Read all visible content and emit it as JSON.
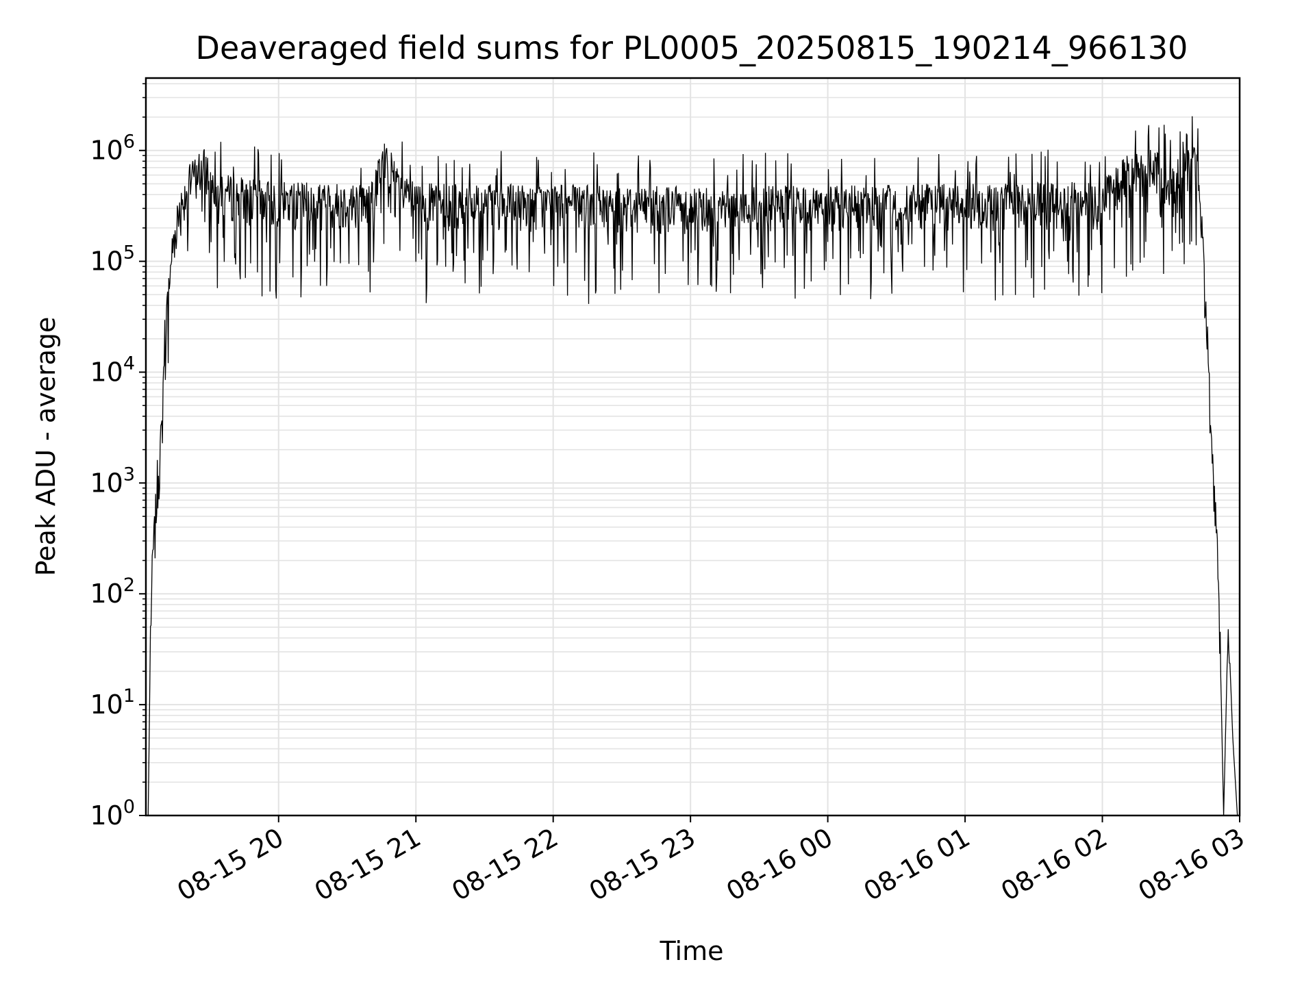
{
  "chart_data": {
    "type": "line",
    "title": "Deaveraged field sums for PL0005_20250815_190214_966130",
    "xlabel": "Time",
    "ylabel": "Peak ADU - average",
    "yscale": "log",
    "ylim": [
      1,
      4500000.0
    ],
    "xlim": [
      "2025-08-15 19:02",
      "2025-08-16 03:00"
    ],
    "grid": true,
    "line_color": "#000000",
    "x_ticks": [
      "08-15 20",
      "08-15 21",
      "08-15 22",
      "08-15 23",
      "08-16 00",
      "08-16 01",
      "08-16 02",
      "08-16 03"
    ],
    "y_ticks": [
      {
        "base": "10",
        "exp": "0"
      },
      {
        "base": "10",
        "exp": "1"
      },
      {
        "base": "10",
        "exp": "2"
      },
      {
        "base": "10",
        "exp": "3"
      },
      {
        "base": "10",
        "exp": "4"
      },
      {
        "base": "10",
        "exp": "5"
      },
      {
        "base": "10",
        "exp": "6"
      }
    ],
    "series": [
      {
        "x": [
          "2025-08-15 19:03",
          "2025-08-15 19:04",
          "2025-08-15 19:05",
          "2025-08-15 19:06",
          "2025-08-15 19:07",
          "2025-08-15 19:09",
          "2025-08-15 19:10",
          "2025-08-15 19:12",
          "2025-08-15 19:14",
          "2025-08-15 19:16",
          "2025-08-15 19:18",
          "2025-08-15 19:20",
          "2025-08-15 19:22",
          "2025-08-15 19:25",
          "2025-08-15 19:28",
          "2025-08-15 19:32",
          "2025-08-15 19:38",
          "2025-08-15 19:45",
          "2025-08-15 19:52",
          "2025-08-15 20:00",
          "2025-08-15 20:20",
          "2025-08-15 20:40",
          "2025-08-15 20:47",
          "2025-08-15 20:50",
          "2025-08-15 20:55",
          "2025-08-15 21:00",
          "2025-08-15 21:30",
          "2025-08-15 22:00",
          "2025-08-15 22:30",
          "2025-08-15 23:00",
          "2025-08-15 23:30",
          "2025-08-16 00:00",
          "2025-08-16 00:30",
          "2025-08-16 01:00",
          "2025-08-16 01:30",
          "2025-08-16 02:00",
          "2025-08-16 02:10",
          "2025-08-16 02:20",
          "2025-08-16 02:30",
          "2025-08-16 02:40",
          "2025-08-16 02:42",
          "2025-08-16 02:44",
          "2025-08-16 02:46",
          "2025-08-16 02:48",
          "2025-08-16 02:50",
          "2025-08-16 02:51",
          "2025-08-16 02:53",
          "2025-08-16 02:55",
          "2025-08-16 02:57",
          "2025-08-16 02:59"
        ],
        "y": [
          1,
          40,
          180,
          350,
          900,
          2500,
          15000,
          60000,
          150000,
          250000,
          350000,
          450000,
          550000,
          650000,
          700000,
          500000,
          400000,
          380000,
          360000,
          350000,
          340000,
          340000,
          900000,
          600000,
          380000,
          340000,
          330000,
          330000,
          320000,
          320000,
          320000,
          320000,
          330000,
          340000,
          340000,
          350000,
          600000,
          700000,
          550000,
          750000,
          600000,
          120000,
          15000,
          1500,
          300,
          100,
          1,
          60,
          5,
          1
        ]
      }
    ]
  }
}
